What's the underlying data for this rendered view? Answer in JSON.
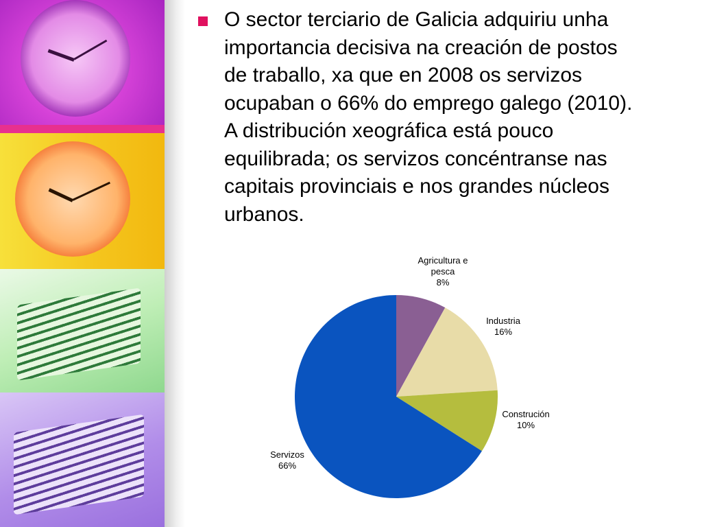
{
  "slide": {
    "text": "O sector terciario de Galicia adquiriu unha importancia decisiva na creación de postos de traballo, xa que en 2008 os servizos ocupaban o 66% do emprego galego (2010). A distribución xeográfica está pouco equilibrada; os servizos concéntranse nas capitais provinciais e nos grandes núcleos urbanos.",
    "bullet_color": "#e0115f"
  },
  "chart_data": {
    "type": "pie",
    "title": "",
    "slices": [
      {
        "name_lines": [
          "Agricultura e",
          "pesca"
        ],
        "pct_label": "8%",
        "value": 8,
        "color": "#8a5f93"
      },
      {
        "name_lines": [
          "Industria"
        ],
        "pct_label": "16%",
        "value": 16,
        "color": "#e8dca8"
      },
      {
        "name_lines": [
          "Construción"
        ],
        "pct_label": "10%",
        "value": 10,
        "color": "#b5bd3e"
      },
      {
        "name_lines": [
          "Servizos"
        ],
        "pct_label": "66%",
        "value": 66,
        "color": "#0a54bf"
      }
    ],
    "start_angle": "12 o'clock",
    "direction": "clockwise",
    "legend": "none"
  }
}
